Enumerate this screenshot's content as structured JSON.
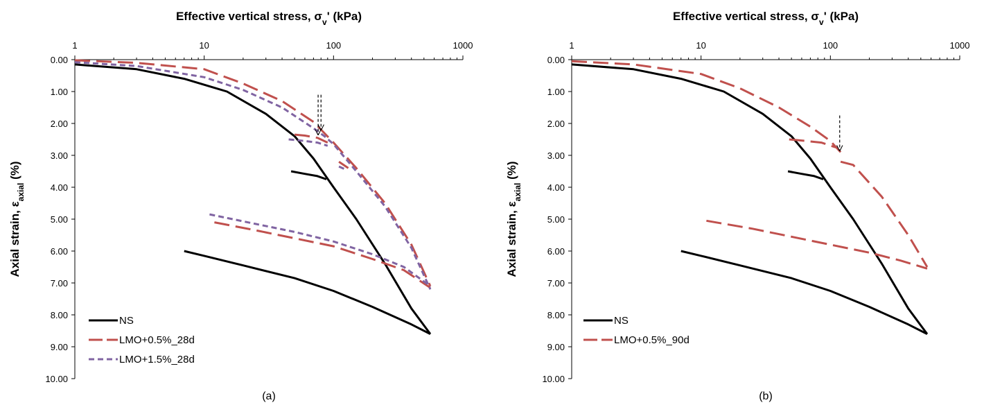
{
  "chart_data": [
    {
      "type": "line",
      "panel_label": "(a)",
      "xlabel": "Effective vertical stress, σv' (kPa)",
      "ylabel": "Axial  strain, εaxial (%)",
      "x_scale": "log",
      "xlim": [
        1,
        1000
      ],
      "ylim": [
        0,
        10
      ],
      "y_inverted": true,
      "x_ticks": [
        1,
        10,
        100,
        1000
      ],
      "y_ticks": [
        "0.00",
        "1.00",
        "2.00",
        "3.00",
        "4.00",
        "5.00",
        "6.00",
        "7.00",
        "8.00",
        "9.00",
        "10.00"
      ],
      "legend_position": "bottom-left",
      "series": [
        {
          "name": "NS",
          "color": "#000000",
          "dash": "solid",
          "segments": [
            [
              [
                1,
                0.15
              ],
              [
                3,
                0.3
              ],
              [
                7,
                0.6
              ],
              [
                15,
                1.0
              ],
              [
                30,
                1.7
              ],
              [
                50,
                2.4
              ],
              [
                70,
                3.1
              ],
              [
                100,
                4.0
              ],
              [
                150,
                5.0
              ],
              [
                250,
                6.4
              ],
              [
                400,
                7.8
              ],
              [
                560,
                8.6
              ]
            ],
            [
              [
                47,
                3.5
              ],
              [
                60,
                3.58
              ],
              [
                75,
                3.65
              ],
              [
                88,
                3.75
              ]
            ],
            [
              [
                7,
                6.0
              ],
              [
                10,
                6.15
              ],
              [
                20,
                6.45
              ],
              [
                50,
                6.85
              ],
              [
                100,
                7.25
              ],
              [
                200,
                7.75
              ],
              [
                400,
                8.3
              ],
              [
                560,
                8.6
              ]
            ]
          ]
        },
        {
          "name": "LMO+0.5%_28d",
          "color": "#c0504d",
          "dash": "long",
          "segments": [
            [
              [
                1,
                0.02
              ],
              [
                3,
                0.1
              ],
              [
                10,
                0.3
              ],
              [
                20,
                0.75
              ],
              [
                40,
                1.3
              ],
              [
                70,
                1.95
              ],
              [
                100,
                2.6
              ],
              [
                150,
                3.4
              ],
              [
                250,
                4.5
              ],
              [
                400,
                5.8
              ],
              [
                560,
                7.1
              ]
            ],
            [
              [
                50,
                2.35
              ],
              [
                60,
                2.38
              ],
              [
                75,
                2.45
              ],
              [
                90,
                2.6
              ]
            ],
            [
              [
                110,
                3.2
              ],
              [
                130,
                3.4
              ]
            ],
            [
              [
                12,
                5.1
              ],
              [
                25,
                5.35
              ],
              [
                50,
                5.6
              ],
              [
                100,
                5.85
              ],
              [
                200,
                6.25
              ],
              [
                350,
                6.6
              ],
              [
                560,
                7.15
              ]
            ]
          ]
        },
        {
          "name": "LMO+1.5%_28d",
          "color": "#8064a2",
          "dash": "short",
          "segments": [
            [
              [
                1,
                0.08
              ],
              [
                3,
                0.2
              ],
              [
                10,
                0.55
              ],
              [
                20,
                0.95
              ],
              [
                40,
                1.5
              ],
              [
                70,
                2.15
              ],
              [
                85,
                2.4
              ],
              [
                100,
                2.65
              ],
              [
                150,
                3.5
              ],
              [
                250,
                4.6
              ],
              [
                400,
                5.9
              ],
              [
                560,
                7.2
              ]
            ],
            [
              [
                45,
                2.5
              ],
              [
                60,
                2.55
              ],
              [
                75,
                2.6
              ],
              [
                90,
                2.7
              ]
            ],
            [
              [
                110,
                3.35
              ],
              [
                125,
                3.45
              ]
            ],
            [
              [
                11,
                4.85
              ],
              [
                25,
                5.15
              ],
              [
                50,
                5.4
              ],
              [
                100,
                5.7
              ],
              [
                200,
                6.1
              ],
              [
                350,
                6.5
              ],
              [
                560,
                7.1
              ]
            ]
          ]
        }
      ],
      "arrows": [
        {
          "x": 76,
          "y_from": 1.1,
          "y_to": 2.35
        },
        {
          "x": 80,
          "y_from": 1.1,
          "y_to": 2.2
        }
      ]
    },
    {
      "type": "line",
      "panel_label": "(b)",
      "xlabel": "Effective vertical stress, σv' (kPa)",
      "ylabel": "Axial  strain, εaxial (%)",
      "x_scale": "log",
      "xlim": [
        1,
        1000
      ],
      "ylim": [
        0,
        10
      ],
      "y_inverted": true,
      "x_ticks": [
        1,
        10,
        100,
        1000
      ],
      "y_ticks": [
        "0.00",
        "1.00",
        "2.00",
        "3.00",
        "4.00",
        "5.00",
        "6.00",
        "7.00",
        "8.00",
        "9.00",
        "10.00"
      ],
      "legend_position": "bottom-left",
      "series": [
        {
          "name": "NS",
          "color": "#000000",
          "dash": "solid",
          "segments": [
            [
              [
                1,
                0.15
              ],
              [
                3,
                0.3
              ],
              [
                7,
                0.6
              ],
              [
                15,
                1.0
              ],
              [
                30,
                1.7
              ],
              [
                50,
                2.4
              ],
              [
                70,
                3.1
              ],
              [
                100,
                4.0
              ],
              [
                150,
                5.0
              ],
              [
                250,
                6.4
              ],
              [
                400,
                7.8
              ],
              [
                560,
                8.6
              ]
            ],
            [
              [
                47,
                3.5
              ],
              [
                60,
                3.58
              ],
              [
                75,
                3.65
              ],
              [
                88,
                3.75
              ]
            ],
            [
              [
                7,
                6.0
              ],
              [
                10,
                6.15
              ],
              [
                20,
                6.45
              ],
              [
                50,
                6.85
              ],
              [
                100,
                7.25
              ],
              [
                200,
                7.75
              ],
              [
                400,
                8.3
              ],
              [
                560,
                8.6
              ]
            ]
          ]
        },
        {
          "name": "LMO+0.5%_90d",
          "color": "#c0504d",
          "dash": "long",
          "segments": [
            [
              [
                1,
                0.05
              ],
              [
                3,
                0.15
              ],
              [
                10,
                0.45
              ],
              [
                20,
                0.9
              ],
              [
                40,
                1.5
              ],
              [
                70,
                2.1
              ],
              [
                100,
                2.55
              ],
              [
                120,
                2.9
              ]
            ],
            [
              [
                48,
                2.5
              ],
              [
                65,
                2.55
              ],
              [
                85,
                2.6
              ],
              [
                110,
                2.75
              ]
            ],
            [
              [
                120,
                3.2
              ],
              [
                150,
                3.3
              ],
              [
                250,
                4.3
              ],
              [
                400,
                5.5
              ],
              [
                560,
                6.5
              ]
            ],
            [
              [
                11,
                5.05
              ],
              [
                25,
                5.3
              ],
              [
                50,
                5.55
              ],
              [
                100,
                5.8
              ],
              [
                200,
                6.05
              ],
              [
                350,
                6.3
              ],
              [
                560,
                6.55
              ]
            ]
          ]
        }
      ],
      "arrows": [
        {
          "x": 118,
          "y_from": 1.75,
          "y_to": 2.85
        }
      ]
    }
  ]
}
